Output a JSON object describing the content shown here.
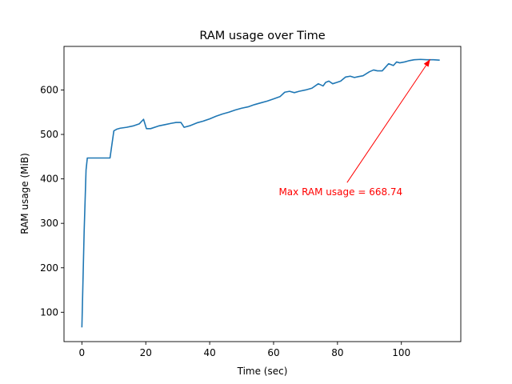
{
  "chart_data": {
    "type": "line",
    "title": "RAM usage over Time",
    "xlabel": "Time (sec)",
    "ylabel": "RAM usage (MiB)",
    "xlim": [
      -5.6,
      118.6
    ],
    "ylim": [
      34,
      698
    ],
    "x_ticks": [
      0,
      20,
      40,
      60,
      80,
      100
    ],
    "y_ticks": [
      100,
      200,
      300,
      400,
      500,
      600
    ],
    "grid": false,
    "line_color": "#1f77b4",
    "annotation": {
      "text": "Max RAM usage = 668.74",
      "color": "#ff0000",
      "point": [
        109,
        668.74
      ],
      "text_anchor_point": [
        83,
        372
      ]
    },
    "series": [
      {
        "x": [
          0,
          0.7,
          1.3,
          1.7,
          2,
          5,
          8.8,
          10,
          11,
          12,
          14,
          16,
          18,
          19.3,
          20.2,
          21.5,
          24,
          26,
          28,
          29.5,
          31,
          32,
          34,
          36,
          38,
          40,
          42,
          44,
          46,
          48,
          50,
          52,
          54,
          56,
          58,
          60,
          62,
          63.5,
          65,
          66.5,
          68,
          70,
          72,
          74,
          75.5,
          76.3,
          77.3,
          78.5,
          79.8,
          81,
          82.5,
          84,
          85.3,
          86.5,
          88,
          90,
          91.3,
          92.5,
          94,
          96,
          97.5,
          98.5,
          99.5,
          101,
          102.5,
          104,
          106,
          108,
          110,
          112
        ],
        "y": [
          66,
          280,
          420,
          447,
          447,
          447,
          447,
          508,
          512,
          514,
          516,
          519,
          524,
          534,
          513,
          513,
          519,
          522,
          525,
          527,
          527,
          516,
          520,
          526,
          530,
          535,
          541,
          546,
          550,
          555,
          559,
          562,
          567,
          571,
          575,
          580,
          585,
          595,
          597,
          594,
          597,
          600,
          604,
          614,
          609,
          617,
          620,
          614,
          617,
          620,
          629,
          631,
          628,
          630,
          632,
          641,
          645,
          643,
          643,
          659,
          655,
          663,
          661,
          663,
          666,
          668,
          668.74,
          668,
          668,
          667
        ]
      }
    ]
  }
}
